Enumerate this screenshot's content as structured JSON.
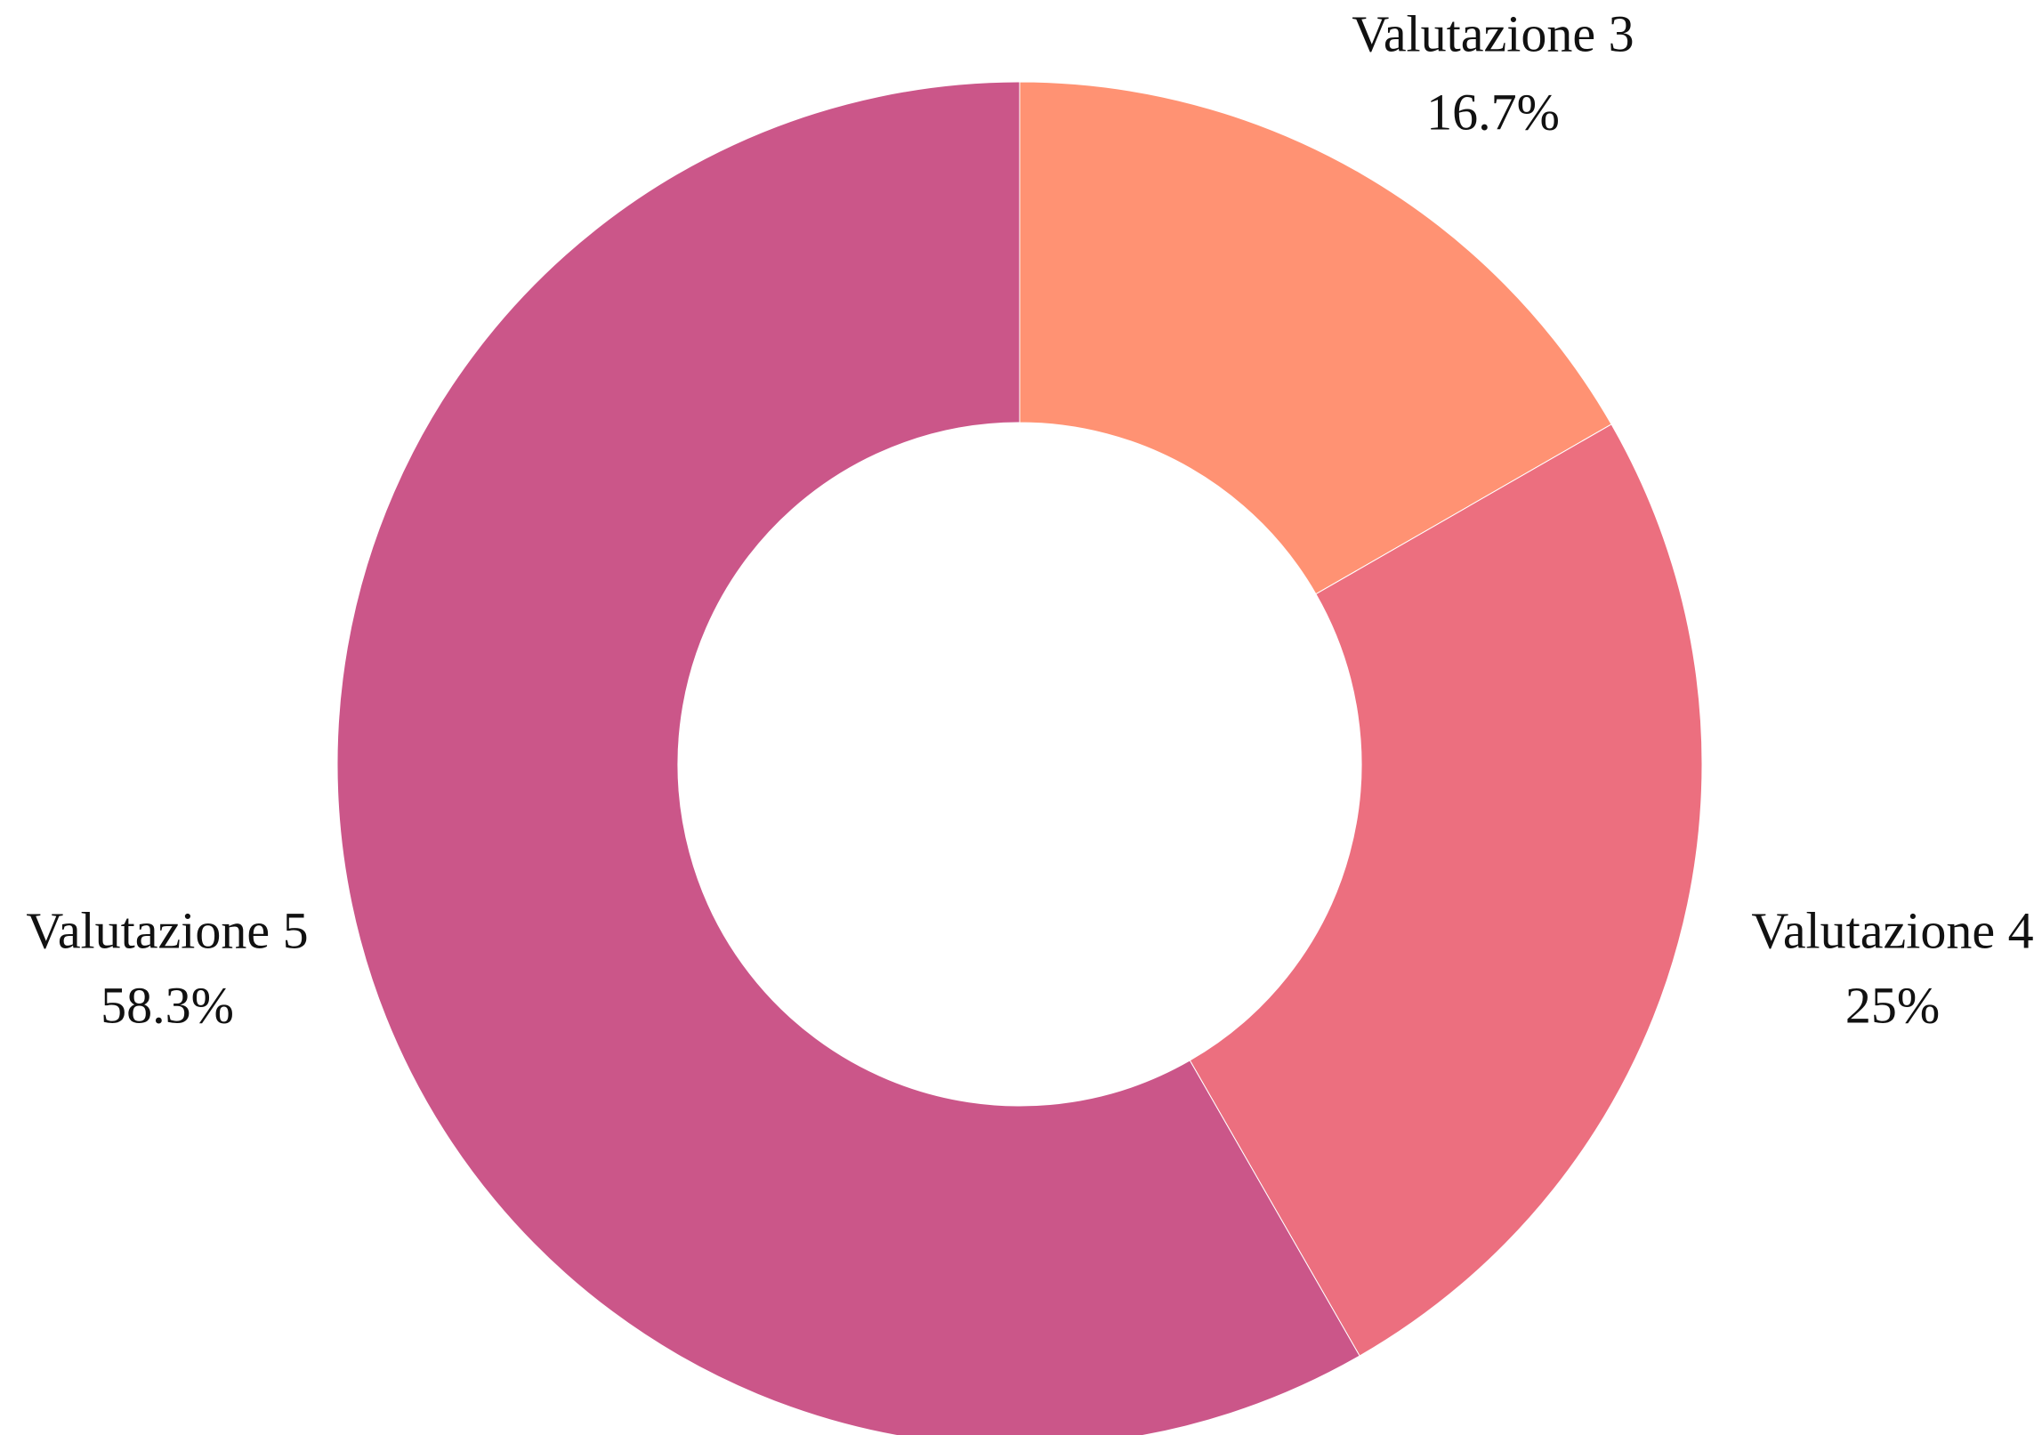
{
  "chart_data": {
    "type": "donut",
    "categories": [
      "Valutazione 3",
      "Valutazione 4",
      "Valutazione 5"
    ],
    "values": [
      16.7,
      25,
      58.3
    ],
    "value_labels": [
      "16.7%",
      "25%",
      "58.3%"
    ],
    "colors": [
      "#ff9273",
      "#ec6f7f",
      "#cb5689"
    ]
  }
}
